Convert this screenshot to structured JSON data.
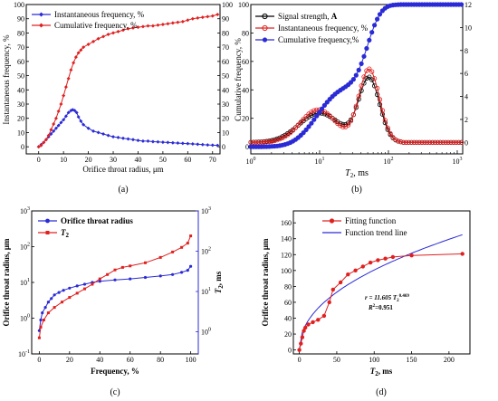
{
  "colors": {
    "blue": "#2b2bd6",
    "red": "#e02020",
    "black": "#000000"
  },
  "chart_data": [
    {
      "panel": "(a)",
      "type": "line",
      "xlabel": "Orifice throat radius, μm",
      "ylabel_left": "Instantaneous frequency, %",
      "ylabel_right": "Cumulative frequency, %",
      "xlim": [
        -5,
        73
      ],
      "ylim_left": [
        -5,
        100
      ],
      "ylim_right": [
        -5,
        100
      ],
      "xticks": [
        "0",
        "10",
        "20",
        "30",
        "40",
        "50",
        "60",
        "70"
      ],
      "yticks_left": [
        "0",
        "10",
        "20",
        "30",
        "40",
        "50",
        "60",
        "70",
        "80",
        "90",
        "100"
      ],
      "yticks_right": [
        "0",
        "10",
        "20",
        "30",
        "40",
        "50",
        "60",
        "70",
        "80",
        "90",
        "100"
      ],
      "legend_position": "top-left",
      "series": [
        {
          "name": "Instantaneous frequency, %",
          "color": "blue",
          "axis": "left",
          "points": [
            [
              0,
              0
            ],
            [
              1,
              1.5
            ],
            [
              2,
              3
            ],
            [
              3,
              5
            ],
            [
              4,
              7
            ],
            [
              5,
              9
            ],
            [
              6,
              11
            ],
            [
              7,
              13
            ],
            [
              8,
              15
            ],
            [
              9,
              17
            ],
            [
              10,
              19
            ],
            [
              11,
              21.5
            ],
            [
              12,
              24
            ],
            [
              13,
              25.5
            ],
            [
              13.7,
              26
            ],
            [
              14.5,
              25.5
            ],
            [
              15.3,
              24
            ],
            [
              16,
              21
            ],
            [
              17,
              18
            ],
            [
              18,
              15.5
            ],
            [
              20,
              13
            ],
            [
              22,
              11
            ],
            [
              24,
              10
            ],
            [
              26,
              9
            ],
            [
              28,
              8
            ],
            [
              30,
              7
            ],
            [
              32,
              6.5
            ],
            [
              34,
              6
            ],
            [
              36,
              5.5
            ],
            [
              38,
              5
            ],
            [
              40,
              4.5
            ],
            [
              42,
              4
            ],
            [
              44,
              4
            ],
            [
              46,
              3.6
            ],
            [
              48,
              3.4
            ],
            [
              50,
              3.2
            ],
            [
              52,
              3
            ],
            [
              54,
              2.8
            ],
            [
              56,
              2.6
            ],
            [
              58,
              2.4
            ],
            [
              60,
              2.2
            ],
            [
              62,
              2
            ],
            [
              64,
              1.8
            ],
            [
              66,
              1.5
            ],
            [
              68,
              1.3
            ],
            [
              70,
              1.1
            ],
            [
              72,
              1
            ]
          ]
        },
        {
          "name": "Cumulative frequency, %",
          "color": "red",
          "axis": "right",
          "points": [
            [
              0,
              0
            ],
            [
              1,
              1
            ],
            [
              2,
              3
            ],
            [
              3,
              5
            ],
            [
              4,
              8
            ],
            [
              5,
              12
            ],
            [
              6,
              16
            ],
            [
              7,
              20
            ],
            [
              8,
              25
            ],
            [
              9,
              30
            ],
            [
              10,
              36
            ],
            [
              11,
              42
            ],
            [
              12,
              48
            ],
            [
              13,
              54
            ],
            [
              14,
              59
            ],
            [
              15,
              63
            ],
            [
              16,
              66
            ],
            [
              17,
              68
            ],
            [
              18,
              70
            ],
            [
              20,
              72
            ],
            [
              22,
              74
            ],
            [
              24,
              76
            ],
            [
              26,
              77.5
            ],
            [
              28,
              79
            ],
            [
              30,
              80
            ],
            [
              32,
              81
            ],
            [
              34,
              82
            ],
            [
              36,
              83
            ],
            [
              38,
              83.5
            ],
            [
              40,
              84
            ],
            [
              42,
              84.5
            ],
            [
              44,
              85
            ],
            [
              46,
              85
            ],
            [
              48,
              85.5
            ],
            [
              50,
              86
            ],
            [
              52,
              86.5
            ],
            [
              54,
              87
            ],
            [
              56,
              87.5
            ],
            [
              58,
              88
            ],
            [
              60,
              89
            ],
            [
              62,
              90
            ],
            [
              64,
              90.5
            ],
            [
              66,
              91
            ],
            [
              68,
              91.5
            ],
            [
              70,
              92
            ],
            [
              72,
              93
            ]
          ]
        }
      ]
    },
    {
      "panel": "(b)",
      "type": "line",
      "xlabel_main": "T",
      "xlabel_sub": "2",
      "xlabel_unit": ", ms",
      "xscale": "log",
      "xlim": [
        1,
        1200
      ],
      "ylim_left": [
        -5,
        100
      ],
      "ylim_right": [
        -1,
        12
      ],
      "xticks": [
        {
          "base": "10",
          "exp": "0",
          "v": 1
        },
        {
          "base": "10",
          "exp": "1",
          "v": 10
        },
        {
          "base": "10",
          "exp": "2",
          "v": 100
        },
        {
          "base": "10",
          "exp": "3",
          "v": 1000
        }
      ],
      "yticks_left": [
        "0",
        "20",
        "40",
        "60",
        "80",
        "100"
      ],
      "yticks_right": [
        "0",
        "2",
        "4",
        "6",
        "8",
        "10",
        "12"
      ],
      "legend_position": "top-left",
      "series": [
        {
          "name_main": "Signal strength, ",
          "name_bold": "A",
          "color": "black",
          "axis": "right"
        },
        {
          "name": "Instantaneous frequency, %",
          "color": "red",
          "axis": "right"
        },
        {
          "name": "Cumulative frequency,%",
          "color": "blue",
          "axis": "left"
        }
      ]
    },
    {
      "panel": "(c)",
      "type": "line",
      "xlabel": "Frequency, %",
      "ylabel_left": "Orifice throat radius, μm",
      "ylabel_right_main": "T",
      "ylabel_right_sub": "2",
      "ylabel_right_unit": ", ms",
      "yscale": "log",
      "xlim": [
        -5,
        105
      ],
      "xticks": [
        "0",
        "20",
        "40",
        "60",
        "80",
        "100"
      ],
      "yticks_left": [
        {
          "base": "10",
          "exp": "-1",
          "v": -1
        },
        {
          "base": "10",
          "exp": "0",
          "v": 0
        },
        {
          "base": "10",
          "exp": "1",
          "v": 1
        },
        {
          "base": "10",
          "exp": "2",
          "v": 2
        },
        {
          "base": "10",
          "exp": "3",
          "v": 3
        }
      ],
      "yticks_right": [
        {
          "base": "10",
          "exp": "0",
          "v": 0
        },
        {
          "base": "10",
          "exp": "1",
          "v": 1
        },
        {
          "base": "10",
          "exp": "2",
          "v": 2
        },
        {
          "base": "10",
          "exp": "3",
          "v": 3
        }
      ],
      "legend_position": "top-left",
      "series": [
        {
          "name": "Orifice throat radius",
          "color": "blue"
        },
        {
          "name_main": "T",
          "name_sub": "2",
          "color": "red"
        }
      ]
    },
    {
      "panel": "(d)",
      "type": "line",
      "xlabel_main": "T",
      "xlabel_sub": "2",
      "xlabel_unit": ", ms",
      "ylabel": "Orifice throat radius, μm",
      "xlim": [
        -8,
        228
      ],
      "ylim": [
        -5,
        175
      ],
      "xticks": [
        "0",
        "50",
        "100",
        "150",
        "200"
      ],
      "yticks": [
        "0",
        "20",
        "40",
        "60",
        "80",
        "100",
        "120",
        "140",
        "160"
      ],
      "legend_position": "top-center",
      "annotation": {
        "eq": "r = 11.605 T",
        "eq_sub": "2",
        "eq_sup": "0.469",
        "r2": "R",
        "r2_sup": "2",
        "r2_val": "=0.951"
      },
      "series": [
        {
          "name": "Fitting function",
          "color": "red",
          "points": [
            [
              0,
              0
            ],
            [
              2,
              8
            ],
            [
              4,
              16
            ],
            [
              6,
              24
            ],
            [
              8,
              28
            ],
            [
              12,
              32
            ],
            [
              18,
              35
            ],
            [
              25,
              38
            ],
            [
              33,
              43
            ],
            [
              40,
              60
            ],
            [
              45,
              76
            ],
            [
              55,
              85
            ],
            [
              65,
              95
            ],
            [
              75,
              100
            ],
            [
              85,
              105
            ],
            [
              95,
              110
            ],
            [
              105,
              113
            ],
            [
              115,
              115
            ],
            [
              125,
              117
            ],
            [
              150,
              119
            ],
            [
              218,
              121
            ]
          ]
        },
        {
          "name": "Function trend line",
          "color": "blue",
          "formula": "r = 11.605*T2^0.469",
          "range": [
            0,
            218
          ]
        }
      ]
    }
  ],
  "panel_labels": [
    "(a)",
    "(b)",
    "(c)",
    "(d)"
  ]
}
